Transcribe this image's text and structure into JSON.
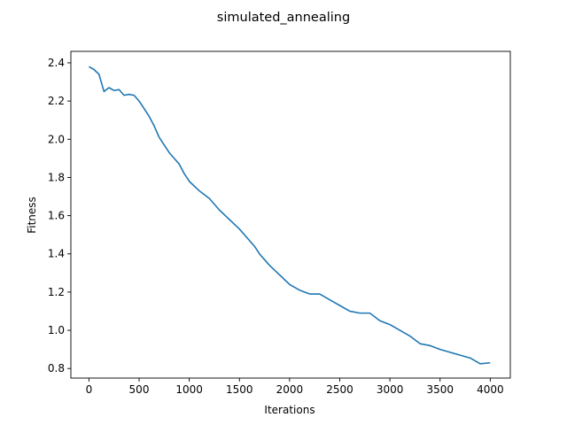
{
  "chart_data": {
    "type": "line",
    "title": "simulated_annealing",
    "xlabel": "Iterations",
    "ylabel": "Fitness",
    "xlim": [
      -180,
      4200
    ],
    "ylim": [
      0.75,
      2.46
    ],
    "xticks": [
      0,
      500,
      1000,
      1500,
      2000,
      2500,
      3000,
      3500,
      4000
    ],
    "yticks": [
      0.8,
      1.0,
      1.2,
      1.4,
      1.6,
      1.8,
      2.0,
      2.2,
      2.4
    ],
    "xtick_labels": [
      "0",
      "500",
      "1000",
      "1500",
      "2000",
      "2500",
      "3000",
      "3500",
      "4000"
    ],
    "ytick_labels": [
      "0.8",
      "1.0",
      "1.2",
      "1.4",
      "1.6",
      "1.8",
      "2.0",
      "2.2",
      "2.4"
    ],
    "grid": false,
    "legend": "none",
    "series": [
      {
        "color": "#1f77b4",
        "x": [
          0,
          50,
          100,
          150,
          200,
          250,
          300,
          350,
          400,
          450,
          500,
          550,
          600,
          650,
          700,
          750,
          800,
          850,
          900,
          950,
          1000,
          1100,
          1200,
          1300,
          1400,
          1500,
          1600,
          1650,
          1700,
          1750,
          1800,
          1900,
          2000,
          2100,
          2200,
          2300,
          2400,
          2500,
          2600,
          2700,
          2800,
          2900,
          3000,
          3100,
          3200,
          3300,
          3400,
          3500,
          3600,
          3700,
          3800,
          3900,
          4000
        ],
        "y": [
          2.38,
          2.365,
          2.34,
          2.25,
          2.27,
          2.255,
          2.26,
          2.23,
          2.235,
          2.23,
          2.2,
          2.16,
          2.12,
          2.07,
          2.01,
          1.97,
          1.93,
          1.9,
          1.87,
          1.82,
          1.78,
          1.73,
          1.69,
          1.63,
          1.58,
          1.53,
          1.47,
          1.44,
          1.4,
          1.37,
          1.34,
          1.29,
          1.24,
          1.21,
          1.19,
          1.19,
          1.16,
          1.13,
          1.1,
          1.09,
          1.09,
          1.05,
          1.03,
          1.0,
          0.97,
          0.93,
          0.92,
          0.9,
          0.885,
          0.87,
          0.855,
          0.825,
          0.83
        ]
      }
    ]
  }
}
